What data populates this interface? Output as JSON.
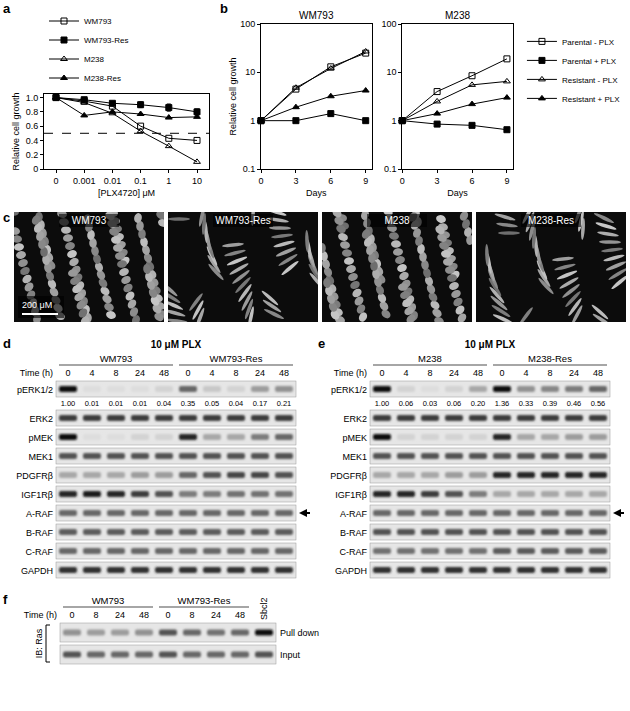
{
  "panels": [
    "a",
    "b",
    "c",
    "d",
    "e",
    "f"
  ],
  "chart_data": [
    {
      "type": "line",
      "x_label": "[PLX4720] μM",
      "y_label": "Relative cell growth",
      "categories": [
        "0",
        "0.001",
        "0.01",
        "0.1",
        "1",
        "10"
      ],
      "ylim": [
        0,
        1.05
      ],
      "yticks": [
        0,
        0.2,
        0.4,
        0.6,
        0.8,
        {
          "value": 1,
          "label": "1.0"
        }
      ],
      "grid": false,
      "legend": "top",
      "reference_line": 0.5,
      "series": [
        {
          "name": "WM793",
          "color": "#000000",
          "marker": "square-open",
          "line_style": "solid",
          "values": [
            1.0,
            0.95,
            0.88,
            0.6,
            0.43,
            0.4
          ]
        },
        {
          "name": "WM793-Res",
          "color": "#000000",
          "marker": "square",
          "line_style": "solid",
          "values": [
            1.0,
            0.97,
            0.92,
            0.9,
            0.86,
            0.8
          ],
          "errors": [
            0,
            0.02,
            0.02,
            0.04,
            0.05,
            0.04
          ]
        },
        {
          "name": "M238",
          "color": "#000000",
          "marker": "triangle-up-open",
          "line_style": "solid",
          "values": [
            1.0,
            0.93,
            0.78,
            0.53,
            0.32,
            0.1
          ]
        },
        {
          "name": "M238-Res",
          "color": "#000000",
          "marker": "triangle-up",
          "line_style": "solid",
          "values": [
            1.0,
            0.75,
            0.8,
            0.77,
            0.72,
            0.73
          ]
        }
      ]
    },
    {
      "type": "line",
      "title": "WM793",
      "x_label": "Days",
      "y_label": "Relative cell growth",
      "x": [
        0,
        3,
        6,
        9
      ],
      "xlim": [
        0,
        9.5
      ],
      "xticks": [
        0,
        3,
        6,
        9
      ],
      "ylim": [
        0.1,
        100
      ],
      "yticks": [
        0.1,
        1,
        10,
        100
      ],
      "log": "y",
      "grid": false,
      "series": [
        {
          "name": "Parental - PLX",
          "color": "#000000",
          "marker": "square-open",
          "line_style": "solid",
          "values": [
            1,
            4.5,
            13,
            25
          ]
        },
        {
          "name": "Parental + PLX",
          "color": "#000000",
          "marker": "square",
          "line_style": "solid",
          "values": [
            1,
            1.0,
            1.4,
            1.0
          ]
        },
        {
          "name": "Resistant - PLX",
          "color": "#000000",
          "marker": "triangle-up-open",
          "line_style": "solid",
          "values": [
            1,
            4.8,
            12,
            27
          ]
        },
        {
          "name": "Resistant + PLX",
          "color": "#000000",
          "marker": "triangle-up",
          "line_style": "solid",
          "values": [
            1,
            1.9,
            3.2,
            4.2
          ]
        }
      ]
    },
    {
      "type": "line",
      "title": "M238",
      "x_label": "Days",
      "x": [
        0,
        3,
        6,
        9
      ],
      "xlim": [
        0,
        9.5
      ],
      "xticks": [
        0,
        3,
        6,
        9
      ],
      "ylim": [
        0.1,
        100
      ],
      "yticks": [
        0.1,
        1,
        10,
        100
      ],
      "log": "y",
      "grid": false,
      "legend": "right",
      "series": [
        {
          "name": "Parental - PLX",
          "color": "#000000",
          "marker": "square-open",
          "line_style": "solid",
          "values": [
            1,
            4,
            8.5,
            19
          ]
        },
        {
          "name": "Parental + PLX",
          "color": "#000000",
          "marker": "square",
          "line_style": "solid",
          "values": [
            1,
            0.85,
            0.8,
            0.65
          ]
        },
        {
          "name": "Resistant - PLX",
          "color": "#000000",
          "marker": "triangle-up-open",
          "line_style": "solid",
          "values": [
            1,
            2.5,
            5.5,
            6.5
          ]
        },
        {
          "name": "Resistant + PLX",
          "color": "#000000",
          "marker": "triangle-up",
          "line_style": "solid",
          "values": [
            1,
            1.4,
            2.2,
            3.0
          ]
        }
      ]
    }
  ],
  "images": {
    "names": [
      "WM793",
      "WM793-Res",
      "M238",
      "M238-Res"
    ],
    "scale_bar": "200 μM"
  },
  "blots": [
    {
      "treatment": "10 μM PLX",
      "time_label": "Time (h)",
      "groups": [
        {
          "name": "WM793",
          "times": [
            "0",
            "4",
            "8",
            "24",
            "48"
          ]
        },
        {
          "name": "WM793-Res",
          "times": [
            "0",
            "4",
            "8",
            "24",
            "48"
          ]
        }
      ],
      "rows": [
        {
          "name": "pERK1/2",
          "bands": [
            1,
            0.05,
            0.05,
            0.05,
            0.1,
            0.6,
            0.15,
            0.1,
            0.35,
            0.4
          ],
          "quant": [
            "1.00",
            "0.01",
            "0.01",
            "0.01",
            "0.04",
            "0.35",
            "0.05",
            "0.04",
            "0.17",
            "0.21"
          ]
        },
        {
          "name": "ERK2",
          "bands": [
            0.8,
            0.8,
            0.8,
            0.8,
            0.8,
            0.8,
            0.8,
            0.8,
            0.8,
            0.8
          ]
        },
        {
          "name": "pMEK",
          "bands": [
            1,
            0.05,
            0.05,
            0.1,
            0.1,
            0.9,
            0.3,
            0.3,
            0.5,
            0.6
          ]
        },
        {
          "name": "MEK1",
          "bands": [
            0.7,
            0.7,
            0.7,
            0.7,
            0.7,
            0.7,
            0.7,
            0.7,
            0.7,
            0.7
          ]
        },
        {
          "name": "PDGFRβ",
          "bands": [
            0.3,
            0.3,
            0.3,
            0.35,
            0.35,
            0.6,
            0.7,
            0.75,
            0.75,
            0.7
          ]
        },
        {
          "name": "IGF1Rβ",
          "bands": [
            0.9,
            0.95,
            0.9,
            0.8,
            0.7,
            0.5,
            0.5,
            0.55,
            0.55,
            0.55
          ]
        },
        {
          "name": "A-RAF",
          "arrow": true,
          "bands": [
            0.6,
            0.6,
            0.6,
            0.6,
            0.6,
            0.6,
            0.6,
            0.6,
            0.6,
            0.6
          ]
        },
        {
          "name": "B-RAF",
          "bands": [
            0.65,
            0.65,
            0.65,
            0.65,
            0.65,
            0.65,
            0.65,
            0.65,
            0.65,
            0.65
          ]
        },
        {
          "name": "C-RAF",
          "bands": [
            0.6,
            0.6,
            0.6,
            0.6,
            0.6,
            0.6,
            0.6,
            0.6,
            0.6,
            0.6
          ]
        },
        {
          "name": "GAPDH",
          "bands": [
            0.85,
            0.85,
            0.85,
            0.85,
            0.85,
            0.85,
            0.85,
            0.85,
            0.85,
            0.85
          ]
        }
      ]
    },
    {
      "treatment": "10 μM PLX",
      "time_label": "Time (h)",
      "groups": [
        {
          "name": "M238",
          "times": [
            "0",
            "4",
            "8",
            "24",
            "48"
          ]
        },
        {
          "name": "M238-Res",
          "times": [
            "0",
            "4",
            "8",
            "24",
            "48"
          ]
        }
      ],
      "rows": [
        {
          "name": "pERK1/2",
          "bands": [
            1,
            0.1,
            0.05,
            0.1,
            0.3,
            1,
            0.4,
            0.45,
            0.5,
            0.6
          ],
          "quant": [
            "1.00",
            "0.06",
            "0.03",
            "0.06",
            "0.20",
            "1.36",
            "0.33",
            "0.39",
            "0.46",
            "0.56"
          ]
        },
        {
          "name": "ERK2",
          "bands": [
            0.8,
            0.8,
            0.8,
            0.8,
            0.8,
            0.8,
            0.8,
            0.8,
            0.8,
            0.8
          ]
        },
        {
          "name": "pMEK",
          "bands": [
            1,
            0.1,
            0.1,
            0.1,
            0.1,
            0.9,
            0.3,
            0.3,
            0.35,
            0.35
          ]
        },
        {
          "name": "MEK1",
          "bands": [
            0.7,
            0.7,
            0.7,
            0.7,
            0.7,
            0.7,
            0.7,
            0.7,
            0.7,
            0.7
          ]
        },
        {
          "name": "PDGFRβ",
          "bands": [
            0.3,
            0.3,
            0.3,
            0.35,
            0.35,
            0.9,
            0.9,
            0.9,
            0.9,
            0.9
          ]
        },
        {
          "name": "IGF1Rβ",
          "bands": [
            0.9,
            0.9,
            0.8,
            0.7,
            0.5,
            0.3,
            0.3,
            0.3,
            0.3,
            0.3
          ]
        },
        {
          "name": "A-RAF",
          "arrow": true,
          "bands": [
            0.6,
            0.6,
            0.6,
            0.6,
            0.6,
            0.6,
            0.6,
            0.6,
            0.6,
            0.6
          ]
        },
        {
          "name": "B-RAF",
          "bands": [
            0.7,
            0.7,
            0.7,
            0.7,
            0.7,
            0.7,
            0.7,
            0.7,
            0.7,
            0.7
          ]
        },
        {
          "name": "C-RAF",
          "bands": [
            0.55,
            0.55,
            0.55,
            0.55,
            0.55,
            0.65,
            0.65,
            0.65,
            0.65,
            0.65
          ]
        },
        {
          "name": "GAPDH",
          "bands": [
            0.85,
            0.85,
            0.85,
            0.85,
            0.85,
            0.85,
            0.85,
            0.85,
            0.85,
            0.85
          ]
        }
      ]
    },
    {
      "time_label": "Time (h)",
      "blot_label": "IB: Ras",
      "control": "Sbcl2",
      "groups": [
        {
          "name": "WM793",
          "times": [
            "0",
            "8",
            "24",
            "48"
          ]
        },
        {
          "name": "WM793-Res",
          "times": [
            "0",
            "8",
            "24",
            "48"
          ]
        }
      ],
      "rows": [
        {
          "name": "Pull down",
          "bands": [
            0.4,
            0.35,
            0.35,
            0.4,
            0.7,
            0.6,
            0.55,
            0.6,
            1
          ]
        },
        {
          "name": "Input",
          "bands": [
            0.7,
            0.6,
            0.6,
            0.6,
            0.7,
            0.6,
            0.6,
            0.6,
            0.7
          ]
        }
      ]
    }
  ]
}
